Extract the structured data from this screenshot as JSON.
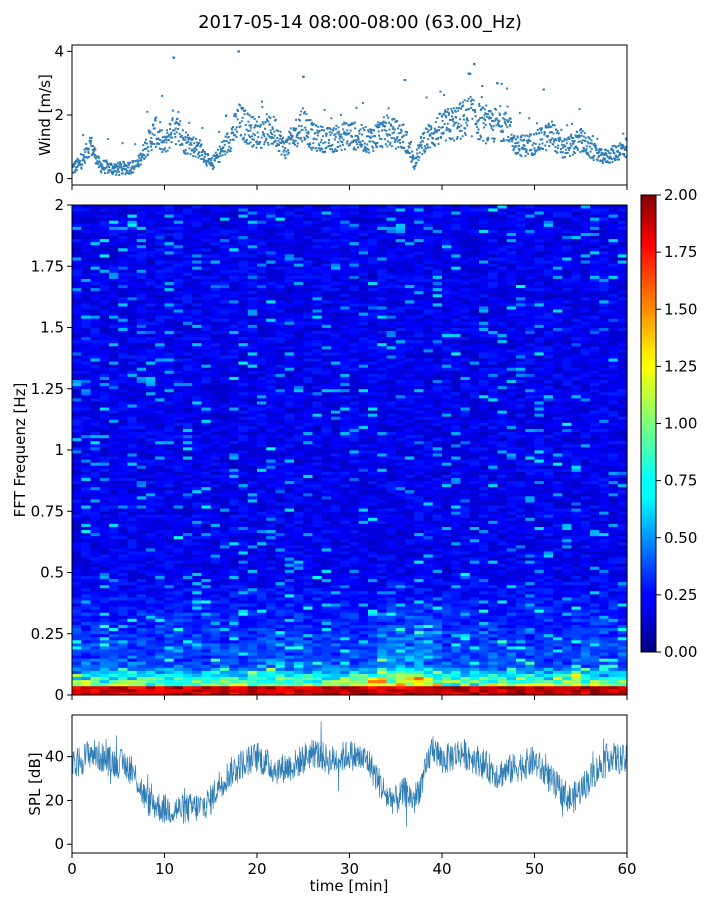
{
  "figure": {
    "title": "2017-05-14 08:00-08:00 (63.00_Hz)"
  },
  "colors": {
    "series": "#2f7db5",
    "frame": "#000000"
  },
  "chart_data": [
    {
      "type": "scatter",
      "ylabel": "Wind [m/s]",
      "xlim": [
        0,
        60
      ],
      "ylim": [
        -0.2,
        4.2
      ],
      "yticks": [
        0,
        2,
        4
      ],
      "ytick_labels": [
        "0",
        "2",
        "4"
      ],
      "x_tick_labels_shown": false,
      "profile_x": [
        0,
        1,
        2,
        3,
        5,
        7,
        8,
        9,
        10,
        11,
        12,
        14,
        15,
        17,
        18,
        20,
        22,
        23,
        25,
        26,
        28,
        30,
        32,
        34,
        36,
        37,
        38,
        40,
        42,
        43,
        45,
        47,
        48,
        50,
        52,
        53,
        55,
        57,
        58,
        60
      ],
      "profile_y": [
        0.3,
        0.5,
        1.1,
        0.4,
        0.3,
        0.4,
        1.0,
        1.5,
        1.0,
        1.7,
        1.2,
        0.9,
        0.4,
        1.2,
        1.8,
        1.4,
        1.5,
        0.9,
        1.8,
        1.3,
        1.2,
        1.4,
        1.2,
        1.5,
        1.3,
        0.5,
        1.2,
        1.6,
        1.8,
        2.0,
        1.6,
        1.8,
        1.0,
        1.1,
        1.4,
        0.9,
        1.2,
        0.7,
        0.7,
        1.0
      ],
      "peaks": [
        [
          11,
          3.8
        ],
        [
          18,
          4.0
        ],
        [
          25,
          3.2
        ],
        [
          36,
          3.1
        ],
        [
          43,
          3.3
        ],
        [
          43.5,
          3.6
        ],
        [
          46,
          3.0
        ],
        [
          51,
          2.8
        ]
      ]
    },
    {
      "type": "heatmap",
      "ylabel": "FFT Frequenz [Hz]",
      "xlim": [
        0,
        60
      ],
      "ylim": [
        0,
        2
      ],
      "yticks": [
        0,
        0.25,
        0.5,
        0.75,
        1,
        1.25,
        1.5,
        1.75,
        2
      ],
      "ytick_labels": [
        "0",
        "0.25",
        "0.5",
        "0.75",
        "1",
        "1.25",
        "1.5",
        "1.75",
        "2"
      ],
      "x_tick_labels_shown": false,
      "colormap": "jet",
      "colorbar": {
        "vmin": 0,
        "vmax": 2,
        "ticks": [
          0,
          0.25,
          0.5,
          0.75,
          1.0,
          1.25,
          1.5,
          1.75,
          2.0
        ],
        "tick_labels": [
          "0.00",
          "0.25",
          "0.50",
          "0.75",
          "1.00",
          "1.25",
          "1.50",
          "1.75",
          "2.00"
        ],
        "placement": "right"
      },
      "description_values": {
        "background_level": 0.22,
        "low_freq_high_levels_below_hz": 0.1,
        "low_freq_peak_value": 2.0
      }
    },
    {
      "type": "line",
      "ylabel": "SPL [dB]",
      "xlabel": "time [min]",
      "xlim": [
        0,
        60
      ],
      "ylim": [
        -4,
        59
      ],
      "xticks": [
        0,
        10,
        20,
        30,
        40,
        50,
        60
      ],
      "xtick_labels": [
        "0",
        "10",
        "20",
        "30",
        "40",
        "50",
        "60"
      ],
      "yticks": [
        0,
        20,
        40
      ],
      "ytick_labels": [
        "0",
        "20",
        "40"
      ],
      "profile_x": [
        0,
        2,
        4,
        6,
        7,
        8,
        10,
        12,
        14,
        15,
        16,
        18,
        20,
        22,
        24,
        26,
        28,
        30,
        32,
        33,
        34,
        35,
        36,
        37,
        38,
        39,
        40,
        42,
        44,
        46,
        48,
        50,
        52,
        54,
        56,
        58,
        60
      ],
      "profile_y": [
        35,
        42,
        38,
        36,
        30,
        20,
        16,
        16,
        17,
        20,
        28,
        36,
        40,
        34,
        36,
        42,
        38,
        41,
        38,
        30,
        22,
        20,
        24,
        20,
        30,
        45,
        38,
        42,
        38,
        32,
        35,
        38,
        28,
        20,
        30,
        40,
        38
      ]
    }
  ],
  "panels": {
    "wind_ylabel": "Wind [m/s]",
    "spec_ylabel": "FFT Frequenz [Hz]",
    "spl_ylabel": "SPL [dB]",
    "time_xlabel": "time [min]"
  }
}
